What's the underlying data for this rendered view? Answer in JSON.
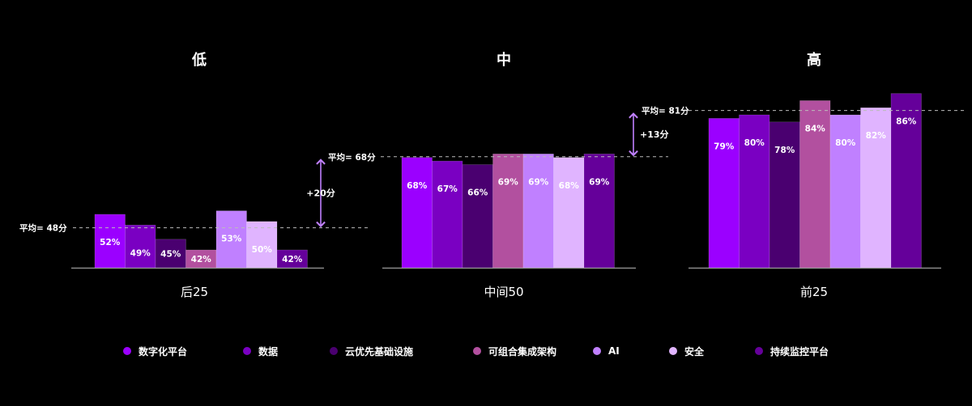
{
  "chart_data": {
    "type": "bar",
    "ylim": [
      0,
      100
    ],
    "groups": [
      {
        "title": "低",
        "label": "后25",
        "average_label": "平均= 48分",
        "average": 48,
        "values": [
          52,
          49,
          45,
          42,
          53,
          50,
          42
        ]
      },
      {
        "title": "中",
        "label": "中间50",
        "average_label": "平均= 68分",
        "average": 68,
        "values": [
          68,
          67,
          66,
          69,
          69,
          68,
          69
        ]
      },
      {
        "title": "高",
        "label": "前25",
        "average_label": "平均= 81分",
        "average": 81,
        "values": [
          79,
          80,
          78,
          84,
          80,
          82,
          86
        ]
      }
    ],
    "series": [
      {
        "name": "数字化平台",
        "color": "#9b00ff"
      },
      {
        "name": "数据",
        "color": "#7a00c2"
      },
      {
        "name": "云优先基础设施",
        "color": "#4a0070"
      },
      {
        "name": "可组合集成架构",
        "color": "#b2509f"
      },
      {
        "name": "AI",
        "color": "#c080ff"
      },
      {
        "name": "安全",
        "color": "#e0b4ff"
      },
      {
        "name": "持续监控平台",
        "color": "#65009a"
      }
    ],
    "differences": [
      {
        "label": "+20分",
        "from": 48,
        "to": 68
      },
      {
        "label": "+13分",
        "from": 68,
        "to": 81
      }
    ],
    "legend_position": "bottom",
    "grid": false
  }
}
